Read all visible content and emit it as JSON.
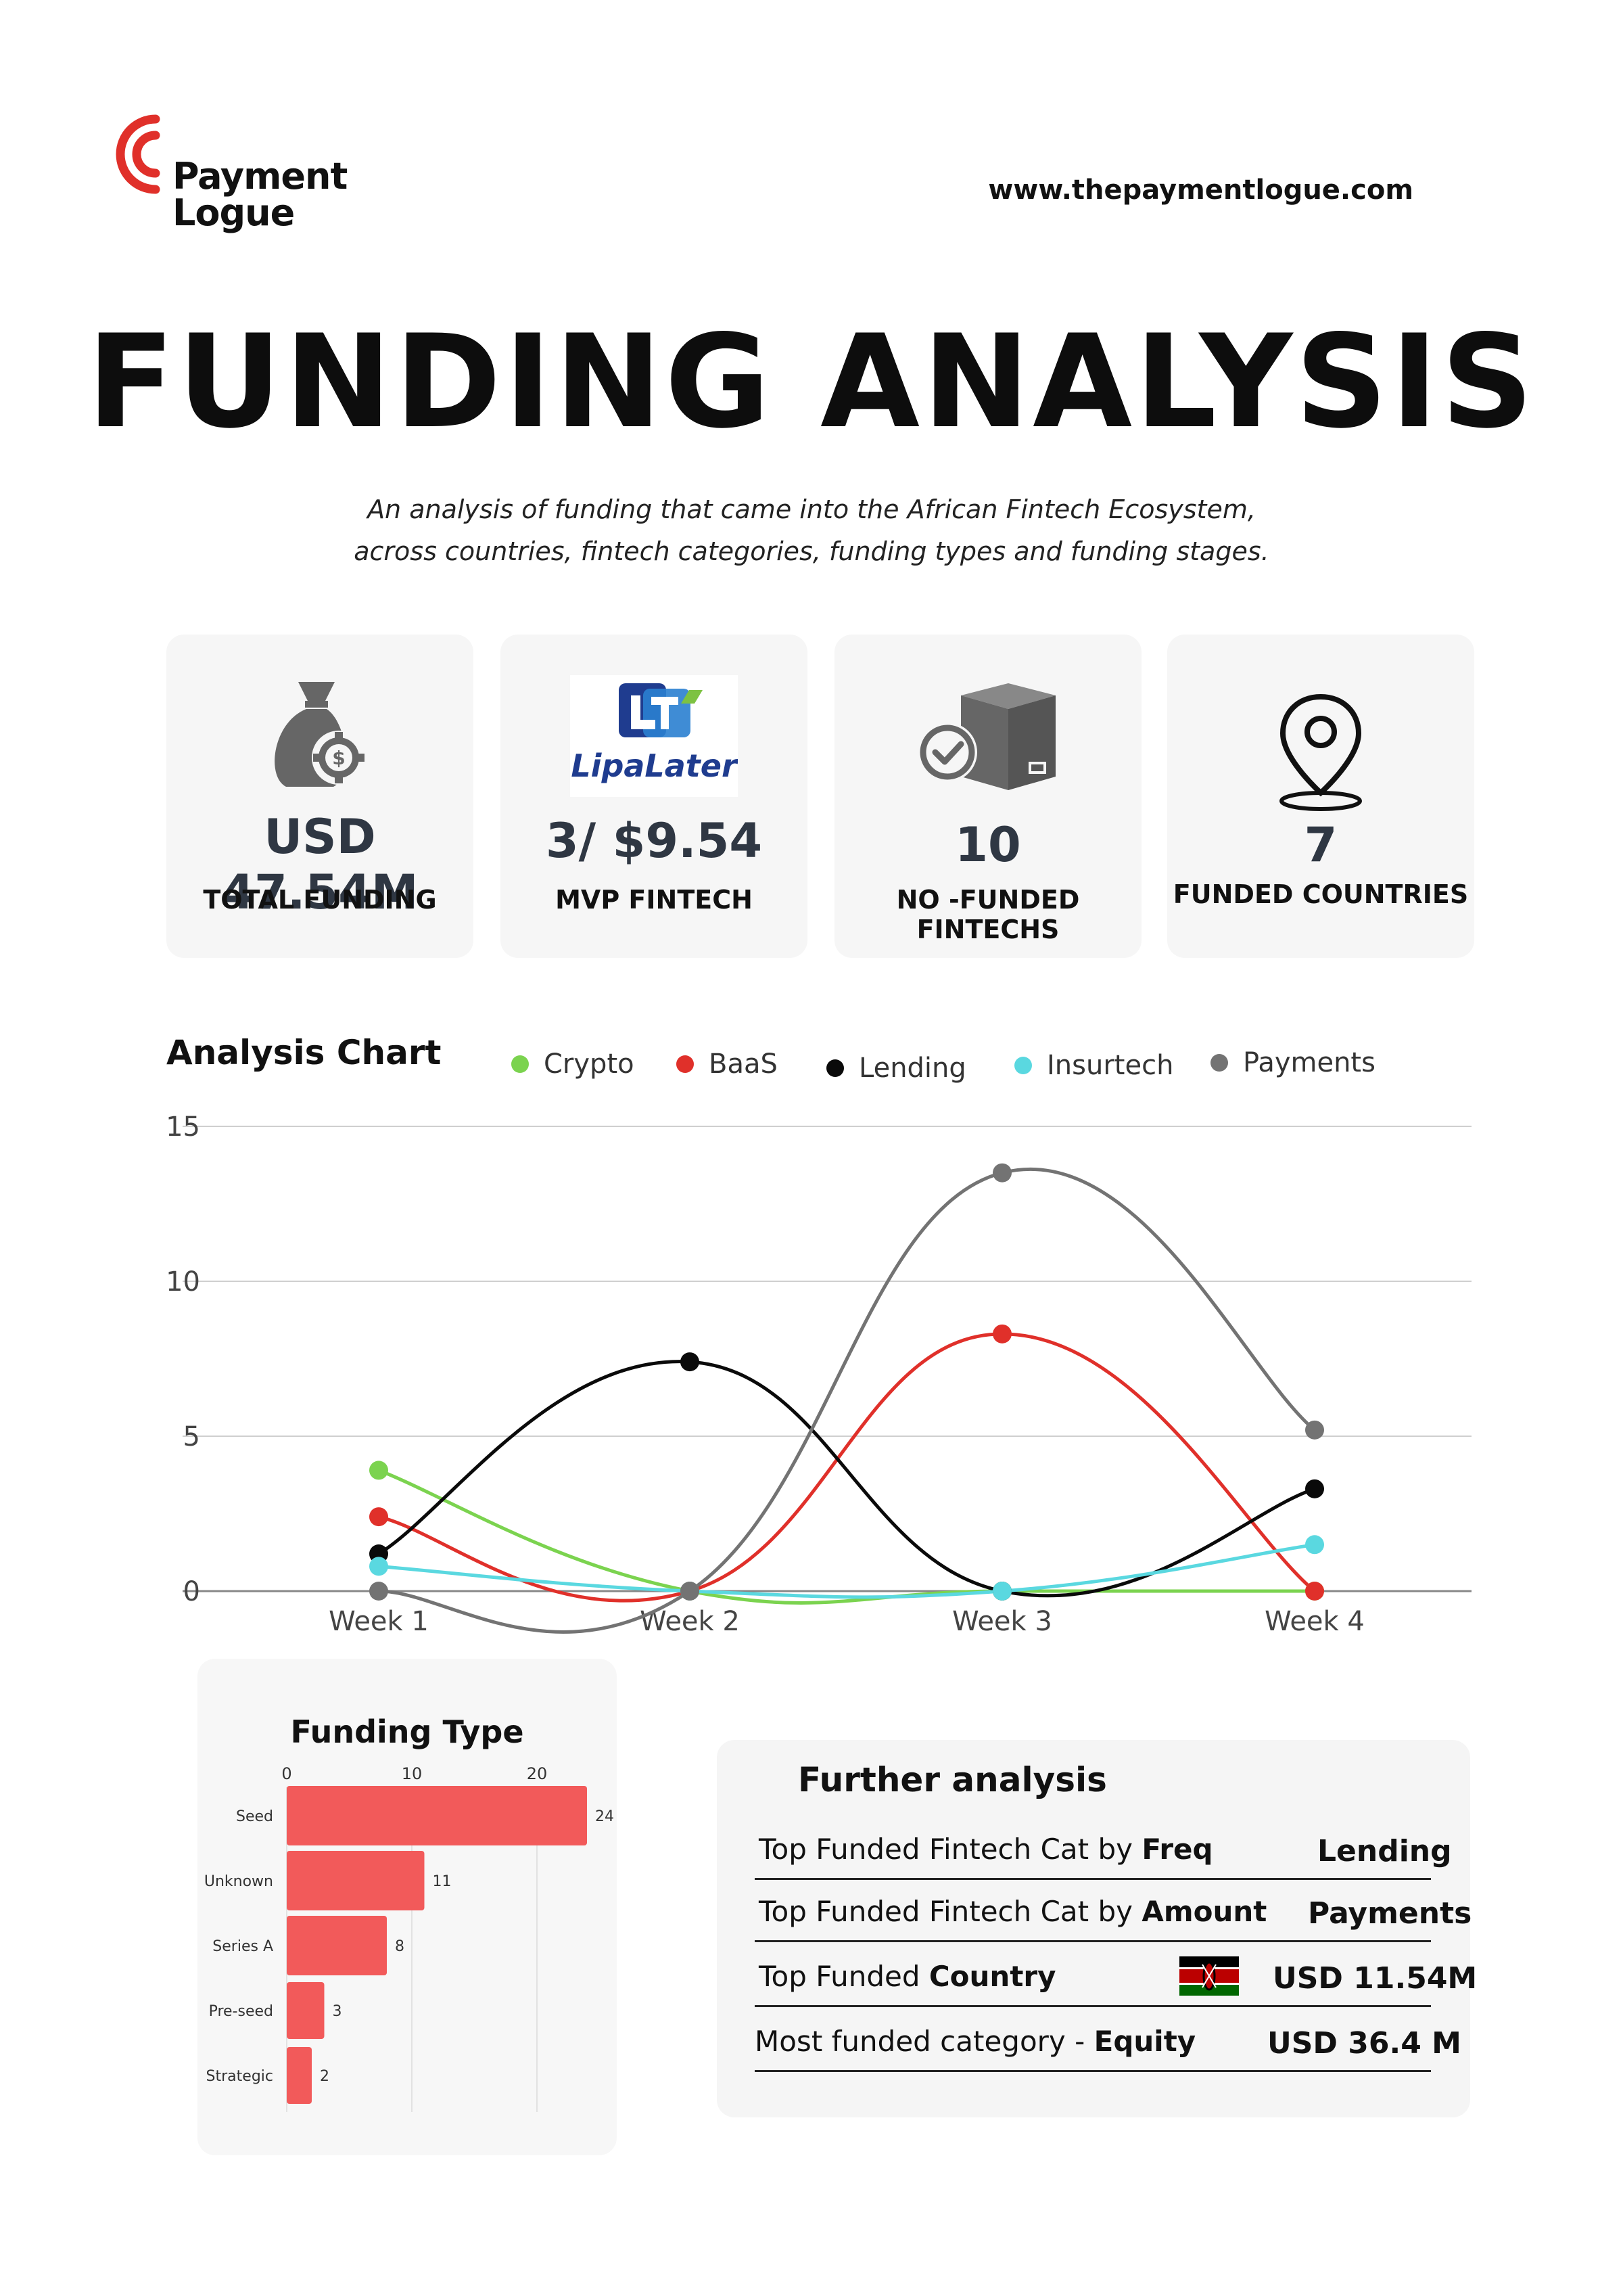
{
  "brand": {
    "name_line1": "Payment",
    "name_line2": "Logue",
    "website": "www.thepaymentlogue.com",
    "accent": "#e0302a"
  },
  "title": "FUNDING ANALYSIS",
  "subtitle": [
    "An analysis of funding that came into the African Fintech Ecosystem,",
    "across countries, fintech categories, funding types and funding stages."
  ],
  "stats": [
    {
      "value": "USD 47.54M",
      "label": "TOTAL FUNDING",
      "icon": "money-bag-gear-icon"
    },
    {
      "value": "3/ $9.54",
      "label": "MVP FINTECH",
      "icon": "lipalater-logo",
      "logo_text": "LipaLater"
    },
    {
      "value": "10",
      "label": "NO -FUNDED FINTECHS",
      "icon": "box-check-icon"
    },
    {
      "value": "7",
      "label": "FUNDED COUNTRIES",
      "icon": "map-pin-icon"
    }
  ],
  "chart_data": [
    {
      "type": "line",
      "title": "Analysis Chart",
      "categories": [
        "Week 1",
        "Week 2",
        "Week 3",
        "Week 4"
      ],
      "ylim": [
        0,
        15
      ],
      "yticks": [
        0,
        5,
        10,
        15
      ],
      "grid": true,
      "legend_position": "top",
      "smooth": true,
      "series": [
        {
          "name": "Crypto",
          "color": "#7bd34f",
          "values": [
            3.9,
            0,
            0,
            0
          ]
        },
        {
          "name": "BaaS",
          "color": "#e0302a",
          "values": [
            2.4,
            0,
            8.3,
            0
          ]
        },
        {
          "name": "Lending",
          "color": "#0a0a0a",
          "values": [
            1.2,
            7.4,
            0,
            3.3
          ]
        },
        {
          "name": "Insurtech",
          "color": "#5ad8e0",
          "values": [
            0.8,
            0,
            0,
            1.5
          ]
        },
        {
          "name": "Payments",
          "color": "#737373",
          "values": [
            0,
            0,
            13.5,
            5.2
          ]
        }
      ]
    },
    {
      "type": "bar",
      "orientation": "horizontal",
      "title": "Funding Type",
      "categories": [
        "Seed",
        "Unknown",
        "Series A",
        "Pre-seed",
        "Strategic"
      ],
      "values": [
        24,
        11,
        8,
        3,
        2
      ],
      "xlim": [
        0,
        28
      ],
      "xticks": [
        0,
        10,
        20
      ],
      "color": "#f25a5a",
      "grid": true
    }
  ],
  "further_analysis": {
    "title": "Further analysis",
    "rows": [
      {
        "label_prefix": "Top Funded Fintech Cat by ",
        "label_bold": "Freq",
        "value": "Lending"
      },
      {
        "label_prefix": "Top Funded Fintech Cat by ",
        "label_bold": "Amount",
        "value": "Payments"
      },
      {
        "label_prefix": "Top Funded ",
        "label_bold": "Country",
        "value": "USD 11.54M",
        "flag": "kenya-flag-icon"
      },
      {
        "label_prefix": "Most funded category - ",
        "label_bold": "Equity",
        "value": "USD  36.4 M"
      }
    ]
  }
}
